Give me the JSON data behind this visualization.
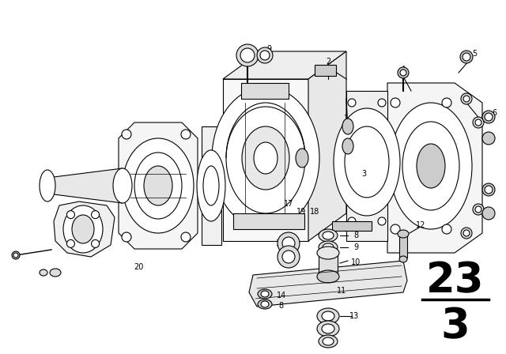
{
  "background_color": "#ffffff",
  "fig_width": 6.4,
  "fig_height": 4.48,
  "dpi": 100,
  "page_number_top": "23",
  "page_number_bottom": "3",
  "line_color": "#000000"
}
